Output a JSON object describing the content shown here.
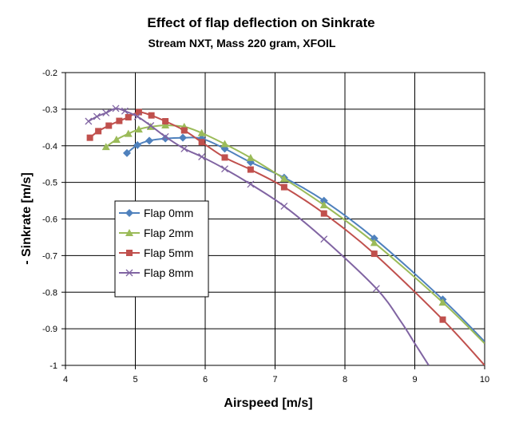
{
  "chart_data": {
    "type": "line",
    "title": "Effect of flap deflection on Sinkrate",
    "subtitle": "Stream NXT, Mass 220 gram, XFOIL",
    "xlabel": "Airspeed [m/s]",
    "ylabel": "- Sinkrate [m/s]",
    "xlim": [
      4,
      10
    ],
    "ylim": [
      -1,
      -0.2
    ],
    "x_ticks": [
      "4",
      "5",
      "6",
      "7",
      "8",
      "9",
      "10"
    ],
    "y_ticks": [
      "-0.2",
      "-0.3",
      "-0.4",
      "-0.5",
      "-0.6",
      "-0.7",
      "-0.8",
      "-0.9",
      "-1"
    ],
    "grid": true,
    "legend_position": "left-center",
    "series": [
      {
        "name": "Flap 0mm",
        "color": "#4f81bd",
        "marker": "diamond",
        "points": [
          [
            4.88,
            -0.42
          ],
          [
            5.03,
            -0.398
          ],
          [
            5.2,
            -0.386
          ],
          [
            5.43,
            -0.38
          ],
          [
            5.68,
            -0.378
          ],
          [
            5.95,
            -0.38
          ],
          [
            6.28,
            -0.408
          ],
          [
            6.65,
            -0.445
          ],
          [
            7.13,
            -0.487
          ],
          [
            7.7,
            -0.55
          ],
          [
            8.42,
            -0.653
          ],
          [
            9.4,
            -0.82
          ]
        ],
        "curve": [
          [
            4.88,
            -0.42
          ],
          [
            5.03,
            -0.398
          ],
          [
            5.2,
            -0.386
          ],
          [
            5.43,
            -0.38
          ],
          [
            5.68,
            -0.378
          ],
          [
            5.95,
            -0.38
          ],
          [
            6.28,
            -0.408
          ],
          [
            6.65,
            -0.445
          ],
          [
            7.13,
            -0.487
          ],
          [
            7.7,
            -0.55
          ],
          [
            8.42,
            -0.653
          ],
          [
            9.4,
            -0.82
          ],
          [
            10.0,
            -0.935
          ]
        ]
      },
      {
        "name": "Flap 2mm",
        "color": "#9bbb59",
        "marker": "triangle",
        "points": [
          [
            4.58,
            -0.403
          ],
          [
            4.73,
            -0.383
          ],
          [
            4.9,
            -0.367
          ],
          [
            5.05,
            -0.355
          ],
          [
            5.22,
            -0.348
          ],
          [
            5.43,
            -0.344
          ],
          [
            5.7,
            -0.348
          ],
          [
            5.95,
            -0.365
          ],
          [
            6.28,
            -0.395
          ],
          [
            6.65,
            -0.433
          ],
          [
            7.13,
            -0.49
          ],
          [
            7.7,
            -0.562
          ],
          [
            8.42,
            -0.665
          ],
          [
            9.4,
            -0.828
          ]
        ],
        "curve": [
          [
            4.58,
            -0.403
          ],
          [
            4.73,
            -0.383
          ],
          [
            4.9,
            -0.367
          ],
          [
            5.05,
            -0.355
          ],
          [
            5.22,
            -0.348
          ],
          [
            5.43,
            -0.344
          ],
          [
            5.7,
            -0.348
          ],
          [
            5.95,
            -0.365
          ],
          [
            6.28,
            -0.395
          ],
          [
            6.65,
            -0.433
          ],
          [
            7.13,
            -0.49
          ],
          [
            7.7,
            -0.562
          ],
          [
            8.42,
            -0.665
          ],
          [
            9.4,
            -0.828
          ],
          [
            10.0,
            -0.94
          ]
        ]
      },
      {
        "name": "Flap 5mm",
        "color": "#c0504d",
        "marker": "square",
        "points": [
          [
            4.35,
            -0.378
          ],
          [
            4.47,
            -0.36
          ],
          [
            4.62,
            -0.345
          ],
          [
            4.77,
            -0.332
          ],
          [
            4.9,
            -0.322
          ],
          [
            5.05,
            -0.308
          ],
          [
            5.23,
            -0.317
          ],
          [
            5.43,
            -0.333
          ],
          [
            5.7,
            -0.358
          ],
          [
            5.95,
            -0.39
          ],
          [
            6.28,
            -0.432
          ],
          [
            6.65,
            -0.465
          ],
          [
            7.13,
            -0.513
          ],
          [
            7.7,
            -0.585
          ],
          [
            8.42,
            -0.695
          ],
          [
            9.4,
            -0.875
          ]
        ],
        "curve": [
          [
            4.35,
            -0.378
          ],
          [
            4.47,
            -0.36
          ],
          [
            4.62,
            -0.345
          ],
          [
            4.77,
            -0.332
          ],
          [
            4.9,
            -0.322
          ],
          [
            5.05,
            -0.308
          ],
          [
            5.23,
            -0.317
          ],
          [
            5.43,
            -0.333
          ],
          [
            5.7,
            -0.358
          ],
          [
            5.95,
            -0.39
          ],
          [
            6.28,
            -0.432
          ],
          [
            6.65,
            -0.465
          ],
          [
            7.13,
            -0.513
          ],
          [
            7.7,
            -0.585
          ],
          [
            8.42,
            -0.695
          ],
          [
            9.4,
            -0.875
          ],
          [
            10.0,
            -1.0
          ]
        ]
      },
      {
        "name": "Flap 8mm",
        "color": "#8064a2",
        "marker": "x",
        "points": [
          [
            4.33,
            -0.333
          ],
          [
            4.45,
            -0.32
          ],
          [
            4.58,
            -0.31
          ],
          [
            4.72,
            -0.298
          ],
          [
            4.85,
            -0.305
          ],
          [
            5.03,
            -0.32
          ],
          [
            5.22,
            -0.345
          ],
          [
            5.43,
            -0.375
          ],
          [
            5.7,
            -0.408
          ],
          [
            5.95,
            -0.43
          ],
          [
            6.28,
            -0.463
          ],
          [
            6.65,
            -0.505
          ],
          [
            7.13,
            -0.565
          ],
          [
            7.7,
            -0.655
          ],
          [
            8.45,
            -0.79
          ]
        ],
        "curve": [
          [
            4.33,
            -0.333
          ],
          [
            4.45,
            -0.32
          ],
          [
            4.58,
            -0.31
          ],
          [
            4.72,
            -0.298
          ],
          [
            4.85,
            -0.305
          ],
          [
            5.03,
            -0.32
          ],
          [
            5.22,
            -0.345
          ],
          [
            5.43,
            -0.375
          ],
          [
            5.7,
            -0.408
          ],
          [
            5.95,
            -0.43
          ],
          [
            6.28,
            -0.463
          ],
          [
            6.65,
            -0.505
          ],
          [
            7.13,
            -0.565
          ],
          [
            7.7,
            -0.655
          ],
          [
            8.45,
            -0.79
          ],
          [
            8.8,
            -0.88
          ],
          [
            9.0,
            -0.94
          ],
          [
            9.2,
            -1.0
          ]
        ]
      }
    ]
  }
}
